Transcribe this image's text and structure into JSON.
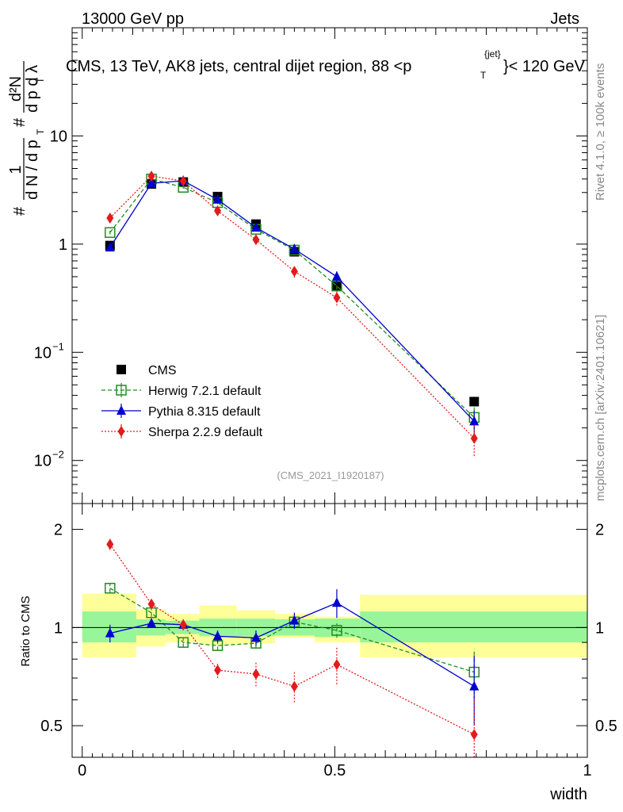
{
  "header": {
    "left": "13000 GeV pp",
    "right": "Jets"
  },
  "side_labels": {
    "rivet": "Rivet 4.1.0, ≥ 100k events",
    "mcplots": "mcplots.cern.ch [arXiv:2401.10621]"
  },
  "chart_data": [
    {
      "type": "scatter",
      "panel": "main",
      "title": "CMS, 13 TeV, AK8 jets, central dijet region, 88 <p",
      "title_sup": "{jet}",
      "title_sub": "T",
      "title_tail": "}< 120 GeV",
      "analysis_tag": "(CMS_2021_I1920187)",
      "ylabel": {
        "hash1": "#",
        "frac1_num": "1",
        "frac1_den": "d N / d p",
        "hash2": "#",
        "frac2_num": "d²N",
        "frac2_den": "d p  d λ",
        "sub": "T"
      },
      "yscale": "log",
      "ylim": [
        0.004,
        100
      ],
      "yticks": [
        {
          "value": 0.01,
          "base": "10",
          "exp": "−2"
        },
        {
          "value": 0.1,
          "base": "10",
          "exp": "−1"
        },
        {
          "value": 1,
          "label": "1"
        },
        {
          "value": 10,
          "label": "10"
        }
      ],
      "xlim": [
        -0.02,
        1.0
      ],
      "x": [
        0.055,
        0.137,
        0.2,
        0.268,
        0.344,
        0.42,
        0.504,
        0.776
      ],
      "series": [
        {
          "name": "CMS",
          "color": "#000000",
          "marker": "filled-square",
          "line": "none",
          "values": [
            0.97,
            3.6,
            3.75,
            2.75,
            1.53,
            0.85,
            0.415,
            0.035
          ],
          "err": [
            0.05,
            0.15,
            0.15,
            0.1,
            0.07,
            0.04,
            0.03,
            0.003
          ]
        },
        {
          "name": "Herwig 7.2.1 default",
          "color": "#228b22",
          "marker": "open-square",
          "line": "dashed",
          "values": [
            1.28,
            4.0,
            3.35,
            2.42,
            1.37,
            0.88,
            0.41,
            0.025
          ],
          "err": [
            0.05,
            0.12,
            0.1,
            0.08,
            0.06,
            0.04,
            0.03,
            0.006
          ]
        },
        {
          "name": "Pythia 8.315 default",
          "color": "#0000cc",
          "marker": "filled-triangle",
          "line": "solid",
          "values": [
            0.93,
            3.65,
            3.85,
            2.58,
            1.42,
            0.9,
            0.5,
            0.023
          ],
          "err": [
            0.06,
            0.12,
            0.12,
            0.1,
            0.07,
            0.05,
            0.06,
            0.006
          ]
        },
        {
          "name": "Sherpa 2.2.9 default",
          "color": "#e41a1c",
          "marker": "filled-diamond",
          "line": "dotted",
          "values": [
            1.74,
            4.25,
            3.83,
            2.03,
            1.1,
            0.56,
            0.32,
            0.016
          ],
          "err": [
            0.08,
            0.15,
            0.15,
            0.1,
            0.1,
            0.07,
            0.05,
            0.005
          ]
        }
      ],
      "legend": {
        "position": "lower-left"
      }
    },
    {
      "type": "scatter",
      "panel": "ratio",
      "ylabel": "Ratio to CMS",
      "xlabel": "width",
      "yscale": "log",
      "ylim": [
        0.4,
        2.4
      ],
      "yticks": [
        0.5,
        1,
        2
      ],
      "xlim": [
        -0.02,
        1.0
      ],
      "xticks": [
        0,
        0.5,
        1
      ],
      "xtick_labels": [
        "0",
        "0.5",
        "1"
      ],
      "reference": 1,
      "bands": [
        {
          "x0": 0.0,
          "x1": 0.107,
          "inner": [
            0.9,
            1.12
          ],
          "outer": [
            0.81,
            1.27
          ]
        },
        {
          "x0": 0.107,
          "x1": 0.165,
          "inner": [
            0.945,
            1.06
          ],
          "outer": [
            0.875,
            1.14
          ]
        },
        {
          "x0": 0.165,
          "x1": 0.232,
          "inner": [
            0.955,
            1.05
          ],
          "outer": [
            0.9,
            1.1
          ]
        },
        {
          "x0": 0.232,
          "x1": 0.306,
          "inner": [
            0.94,
            1.065
          ],
          "outer": [
            0.885,
            1.17
          ]
        },
        {
          "x0": 0.306,
          "x1": 0.382,
          "inner": [
            0.94,
            1.065
          ],
          "outer": [
            0.895,
            1.13
          ]
        },
        {
          "x0": 0.382,
          "x1": 0.46,
          "inner": [
            0.945,
            1.06
          ],
          "outer": [
            0.93,
            1.1
          ]
        },
        {
          "x0": 0.46,
          "x1": 0.55,
          "inner": [
            0.935,
            1.065
          ],
          "outer": [
            0.9,
            1.08
          ]
        },
        {
          "x0": 0.55,
          "x1": 1.0,
          "inner": [
            0.9,
            1.12
          ],
          "outer": [
            0.81,
            1.26
          ]
        }
      ],
      "band_colors": {
        "inner": "#99f599",
        "outer": "#ffff99"
      },
      "series": [
        {
          "name": "Herwig 7.2.1 default",
          "color": "#228b22",
          "marker": "open-square",
          "line": "dashed",
          "values": [
            1.32,
            1.11,
            0.9,
            0.88,
            0.895,
            1.04,
            0.98,
            0.73
          ],
          "err": [
            0.04,
            0.03,
            0.03,
            0.03,
            0.035,
            0.04,
            0.05,
            0.13
          ]
        },
        {
          "name": "Pythia 8.315 default",
          "color": "#0000cc",
          "marker": "filled-triangle",
          "line": "solid",
          "values": [
            0.96,
            1.03,
            1.02,
            0.94,
            0.93,
            1.05,
            1.19,
            0.66
          ],
          "err": [
            0.06,
            0.03,
            0.03,
            0.04,
            0.05,
            0.06,
            0.12,
            0.16
          ]
        },
        {
          "name": "Sherpa 2.2.9 default",
          "color": "#e41a1c",
          "marker": "filled-diamond",
          "line": "dotted",
          "values": [
            1.8,
            1.18,
            1.02,
            0.74,
            0.72,
            0.66,
            0.77,
            0.47
          ],
          "err": [
            0.07,
            0.04,
            0.04,
            0.04,
            0.06,
            0.07,
            0.1,
            0.14
          ]
        }
      ]
    }
  ]
}
